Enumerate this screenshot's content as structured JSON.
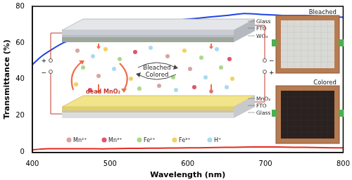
{
  "chart_data": {
    "type": "line",
    "x_label": "Wavelength (nm)",
    "y_label": "Transmittance (%)",
    "x": [
      400,
      410,
      420,
      440,
      460,
      480,
      500,
      525,
      550,
      575,
      600,
      625,
      650,
      670,
      700,
      725,
      750,
      775,
      800
    ],
    "series": [
      {
        "name": "Bleached",
        "color": "#1f45e6",
        "values": [
          48,
          52,
          55,
          60,
          63,
          66,
          68,
          70,
          71,
          72,
          73,
          74,
          75,
          76,
          75.5,
          75,
          75,
          74.5,
          74
        ]
      },
      {
        "name": "Colored",
        "color": "#e52b20",
        "values": [
          1.5,
          1.8,
          2,
          2,
          2,
          2,
          2,
          2.2,
          2.3,
          2.4,
          2.5,
          2.6,
          2.8,
          2.9,
          3,
          2.9,
          2.8,
          2.6,
          2.5
        ]
      }
    ],
    "xlim": [
      400,
      800
    ],
    "xticks": [
      400,
      500,
      600,
      700,
      800
    ],
    "ylim": [
      0,
      80
    ],
    "yticks": [
      0,
      20,
      40,
      60,
      80
    ],
    "grid": false,
    "annotations": {
      "top_layers": [
        "Glass",
        "FTO",
        "WO₃"
      ],
      "bottom_layers": [
        "MnO₂",
        "FTO",
        "Glass"
      ],
      "states": [
        "Bleached",
        "Colored"
      ],
      "dead_label": "dead MnO₂",
      "terminals": [
        "+",
        "−",
        "−",
        "+"
      ],
      "ions": [
        {
          "name": "Mn²⁺",
          "color": "#d9a3a3"
        },
        {
          "name": "Mn³⁺",
          "color": "#e0556b"
        },
        {
          "name": "Fe²⁺",
          "color": "#a9d98a"
        },
        {
          "name": "Fe³⁺",
          "color": "#f2d160"
        },
        {
          "name": "H⁺",
          "color": "#a9daf2"
        }
      ]
    }
  }
}
